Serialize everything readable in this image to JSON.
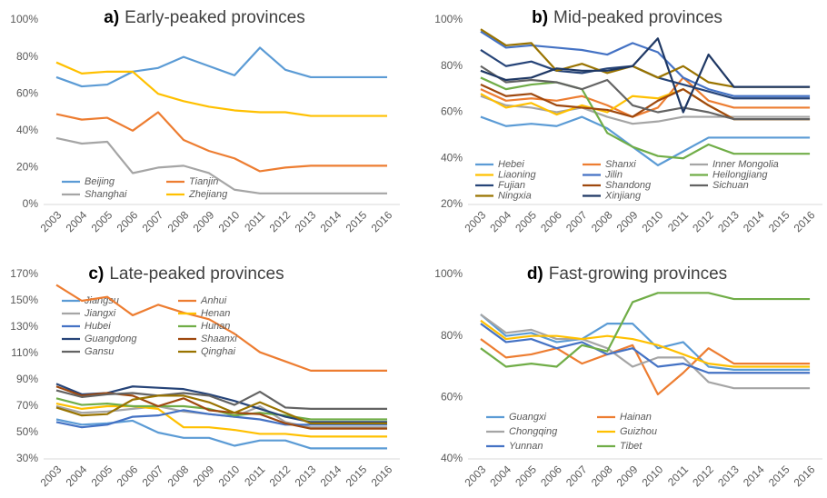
{
  "chart_data": [
    {
      "type": "line",
      "panel_label": "a)",
      "title": "Early-peaked provinces",
      "categories": [
        "2003",
        "2004",
        "2005",
        "2006",
        "2007",
        "2008",
        "2009",
        "2010",
        "2011",
        "2012",
        "2013",
        "2014",
        "2015",
        "2016"
      ],
      "ylim": [
        0,
        100
      ],
      "yticks": [
        {
          "value": 0,
          "label": "0%"
        },
        {
          "value": 20,
          "label": "20%"
        },
        {
          "value": 40,
          "label": "40%"
        },
        {
          "value": 60,
          "label": "60%"
        },
        {
          "value": 80,
          "label": "80%"
        },
        {
          "value": 100,
          "label": "100%"
        }
      ],
      "series": [
        {
          "name": "Beijing",
          "color": "#5b9bd5",
          "values": [
            69,
            64,
            65,
            72,
            74,
            80,
            75,
            70,
            85,
            73,
            69,
            69,
            69,
            69
          ]
        },
        {
          "name": "Tianjin",
          "color": "#ed7d31",
          "values": [
            49,
            46,
            47,
            40,
            50,
            35,
            29,
            25,
            18,
            20,
            21,
            21,
            21,
            21
          ]
        },
        {
          "name": "Shanghai",
          "color": "#a5a5a5",
          "values": [
            36,
            33,
            34,
            17,
            20,
            21,
            17,
            8,
            6,
            6,
            6,
            6,
            6,
            6
          ]
        },
        {
          "name": "Zhejiang",
          "color": "#ffc000",
          "values": [
            77,
            71,
            72,
            72,
            60,
            56,
            53,
            51,
            50,
            50,
            48,
            48,
            48,
            48
          ]
        }
      ]
    },
    {
      "type": "line",
      "panel_label": "b)",
      "title": "Mid-peaked provinces",
      "categories": [
        "2003",
        "2004",
        "2005",
        "2006",
        "2007",
        "2008",
        "2009",
        "2010",
        "2011",
        "2012",
        "2013",
        "2014",
        "2015",
        "2016"
      ],
      "ylim": [
        20,
        100
      ],
      "yticks": [
        {
          "value": 20,
          "label": "20%"
        },
        {
          "value": 40,
          "label": "40%"
        },
        {
          "value": 60,
          "label": "60%"
        },
        {
          "value": 80,
          "label": "80%"
        },
        {
          "value": 100,
          "label": "100%"
        }
      ],
      "series": [
        {
          "name": "Hebei",
          "color": "#5b9bd5",
          "values": [
            58,
            54,
            55,
            54,
            58,
            53,
            45,
            37,
            43,
            49,
            49,
            49,
            49,
            49
          ]
        },
        {
          "name": "Shanxi",
          "color": "#ed7d31",
          "values": [
            70,
            65,
            66,
            65,
            67,
            63,
            58,
            62,
            75,
            65,
            62,
            62,
            62,
            62
          ]
        },
        {
          "name": "Inner Mongolia",
          "color": "#a5a5a5",
          "values": [
            67,
            63,
            62,
            60,
            62,
            58,
            55,
            56,
            58,
            58,
            58,
            58,
            58,
            58
          ]
        },
        {
          "name": "Liaoning",
          "color": "#ffc000",
          "values": [
            68,
            62,
            64,
            59,
            63,
            60,
            67,
            66,
            70,
            63,
            57,
            57,
            57,
            57
          ]
        },
        {
          "name": "Jilin",
          "color": "#4472c4",
          "values": [
            95,
            88,
            89,
            88,
            87,
            85,
            90,
            86,
            75,
            70,
            67,
            67,
            67,
            67
          ]
        },
        {
          "name": "Heilongjiang",
          "color": "#70ad47",
          "values": [
            75,
            70,
            72,
            73,
            70,
            51,
            45,
            41,
            40,
            46,
            42,
            42,
            42,
            42
          ]
        },
        {
          "name": "Fujian",
          "color": "#264478",
          "values": [
            87,
            80,
            82,
            78,
            77,
            79,
            80,
            75,
            72,
            69,
            66,
            66,
            66,
            66
          ]
        },
        {
          "name": "Shandong",
          "color": "#9e480e",
          "values": [
            72,
            67,
            68,
            63,
            62,
            61,
            58,
            65,
            70,
            63,
            57,
            57,
            57,
            57
          ]
        },
        {
          "name": "Sichuan",
          "color": "#636363",
          "values": [
            80,
            73,
            74,
            73,
            70,
            74,
            63,
            60,
            62,
            60,
            57,
            57,
            57,
            57
          ]
        },
        {
          "name": "Ningxia",
          "color": "#997300",
          "values": [
            96,
            89,
            90,
            78,
            81,
            77,
            80,
            75,
            80,
            73,
            71,
            71,
            71,
            71
          ]
        },
        {
          "name": "Xinjiang",
          "color": "#1f3864",
          "values": [
            78,
            74,
            75,
            79,
            78,
            78,
            80,
            92,
            60,
            85,
            71,
            71,
            71,
            71
          ]
        }
      ]
    },
    {
      "type": "line",
      "panel_label": "c)",
      "title": "Late-peaked provinces",
      "categories": [
        "2003",
        "2004",
        "2005",
        "2006",
        "2007",
        "2008",
        "2009",
        "2010",
        "2011",
        "2012",
        "2013",
        "2014",
        "2015",
        "2016"
      ],
      "ylim": [
        30,
        170
      ],
      "yticks": [
        {
          "value": 30,
          "label": "30%"
        },
        {
          "value": 50,
          "label": "50%"
        },
        {
          "value": 70,
          "label": "70%"
        },
        {
          "value": 90,
          "label": "90%"
        },
        {
          "value": 110,
          "label": "110%"
        },
        {
          "value": 130,
          "label": "130%"
        },
        {
          "value": 150,
          "label": "150%"
        },
        {
          "value": 170,
          "label": "170%"
        }
      ],
      "series": [
        {
          "name": "Jiangsu",
          "color": "#5b9bd5",
          "values": [
            60,
            56,
            57,
            59,
            50,
            46,
            46,
            40,
            44,
            44,
            38,
            38,
            38,
            38
          ]
        },
        {
          "name": "Anhui",
          "color": "#ed7d31",
          "values": [
            162,
            150,
            153,
            139,
            147,
            141,
            136,
            125,
            111,
            104,
            97,
            97,
            97,
            97
          ]
        },
        {
          "name": "Jiangxi",
          "color": "#a5a5a5",
          "values": [
            70,
            65,
            66,
            68,
            70,
            66,
            64,
            62,
            70,
            58,
            54,
            54,
            54,
            54
          ]
        },
        {
          "name": "Henan",
          "color": "#ffc000",
          "values": [
            72,
            68,
            70,
            70,
            68,
            54,
            54,
            52,
            49,
            49,
            47,
            47,
            47,
            47
          ]
        },
        {
          "name": "Hubei",
          "color": "#4472c4",
          "values": [
            58,
            54,
            56,
            62,
            63,
            67,
            64,
            62,
            60,
            56,
            56,
            56,
            56,
            56
          ]
        },
        {
          "name": "Hunan",
          "color": "#70ad47",
          "values": [
            76,
            71,
            72,
            70,
            70,
            70,
            68,
            63,
            65,
            63,
            60,
            60,
            60,
            60
          ]
        },
        {
          "name": "Guangdong",
          "color": "#264478",
          "values": [
            87,
            79,
            80,
            85,
            84,
            83,
            79,
            74,
            68,
            62,
            58,
            58,
            58,
            58
          ]
        },
        {
          "name": "Shaanxi",
          "color": "#9e480e",
          "values": [
            85,
            78,
            80,
            78,
            70,
            76,
            67,
            65,
            64,
            57,
            53,
            53,
            53,
            53
          ]
        },
        {
          "name": "Gansu",
          "color": "#636363",
          "values": [
            82,
            77,
            79,
            80,
            78,
            80,
            78,
            71,
            81,
            69,
            68,
            68,
            68,
            68
          ]
        },
        {
          "name": "Qinghai",
          "color": "#997300",
          "values": [
            69,
            63,
            64,
            75,
            78,
            78,
            73,
            65,
            73,
            65,
            57,
            57,
            57,
            57
          ]
        }
      ]
    },
    {
      "type": "line",
      "panel_label": "d)",
      "title": "Fast-growing provinces",
      "categories": [
        "2003",
        "2004",
        "2005",
        "2006",
        "2007",
        "2008",
        "2009",
        "2010",
        "2011",
        "2012",
        "2013",
        "2014",
        "2015",
        "2016"
      ],
      "ylim": [
        40,
        100
      ],
      "yticks": [
        {
          "value": 40,
          "label": "40%"
        },
        {
          "value": 60,
          "label": "60%"
        },
        {
          "value": 80,
          "label": "80%"
        },
        {
          "value": 100,
          "label": "100%"
        }
      ],
      "series": [
        {
          "name": "Guangxi",
          "color": "#5b9bd5",
          "values": [
            87,
            80,
            81,
            78,
            79,
            84,
            84,
            76,
            78,
            70,
            69,
            69,
            69,
            69
          ]
        },
        {
          "name": "Hainan",
          "color": "#ed7d31",
          "values": [
            79,
            73,
            74,
            76,
            71,
            74,
            77,
            61,
            68,
            76,
            71,
            71,
            71,
            71
          ]
        },
        {
          "name": "Chongqing",
          "color": "#a5a5a5",
          "values": [
            87,
            81,
            82,
            79,
            79,
            76,
            70,
            73,
            73,
            65,
            63,
            63,
            63,
            63
          ]
        },
        {
          "name": "Guizhou",
          "color": "#ffc000",
          "values": [
            85,
            79,
            80,
            80,
            79,
            80,
            79,
            77,
            74,
            71,
            70,
            70,
            70,
            70
          ]
        },
        {
          "name": "Yunnan",
          "color": "#4472c4",
          "values": [
            84,
            78,
            79,
            76,
            78,
            74,
            76,
            70,
            71,
            68,
            68,
            68,
            68,
            68
          ]
        },
        {
          "name": "Tibet",
          "color": "#70ad47",
          "values": [
            76,
            70,
            71,
            70,
            77,
            75,
            91,
            94,
            94,
            94,
            92,
            92,
            92,
            92
          ]
        }
      ]
    }
  ]
}
